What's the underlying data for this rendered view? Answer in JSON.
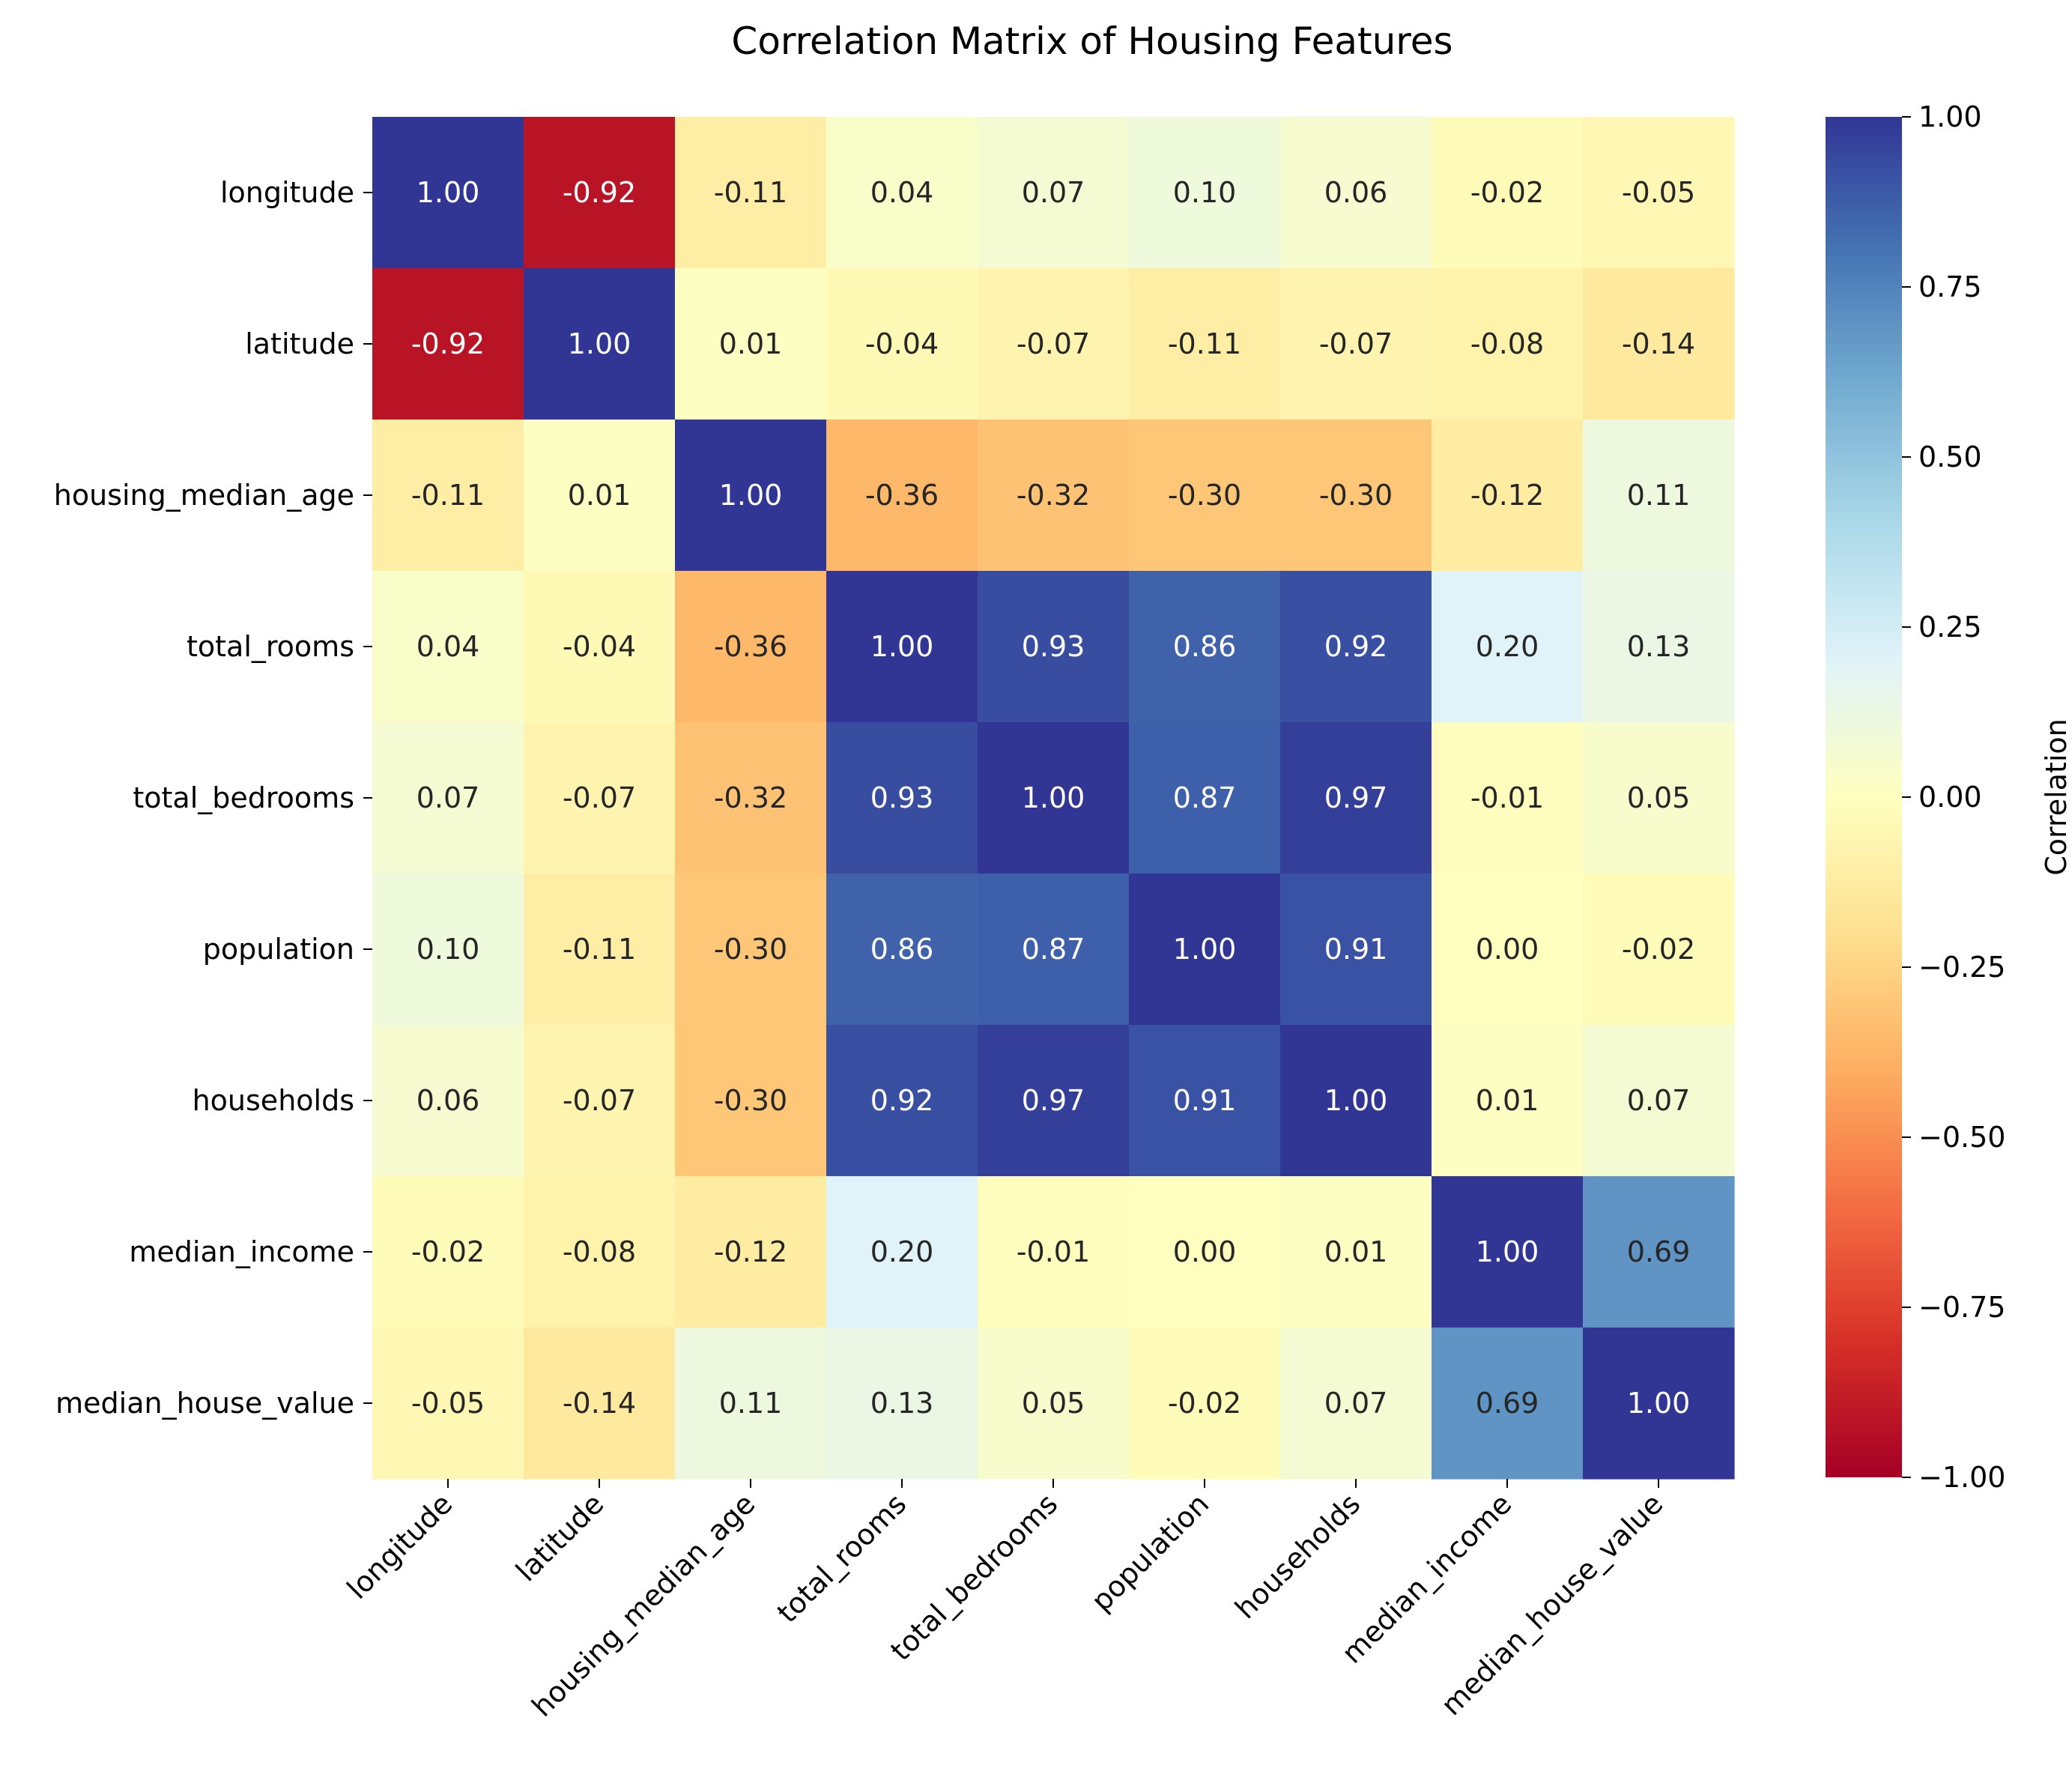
{
  "chart_data": {
    "type": "heatmap",
    "title": "Correlation Matrix of Housing Features",
    "xlabel": "",
    "ylabel": "",
    "labels": [
      "longitude",
      "latitude",
      "housing_median_age",
      "total_rooms",
      "total_bedrooms",
      "population",
      "households",
      "median_income",
      "median_house_value"
    ],
    "values": [
      [
        1.0,
        -0.92,
        -0.11,
        0.04,
        0.07,
        0.1,
        0.06,
        -0.02,
        -0.05
      ],
      [
        -0.92,
        1.0,
        0.01,
        -0.04,
        -0.07,
        -0.11,
        -0.07,
        -0.08,
        -0.14
      ],
      [
        -0.11,
        0.01,
        1.0,
        -0.36,
        -0.32,
        -0.3,
        -0.3,
        -0.12,
        0.11
      ],
      [
        0.04,
        -0.04,
        -0.36,
        1.0,
        0.93,
        0.86,
        0.92,
        0.2,
        0.13
      ],
      [
        0.07,
        -0.07,
        -0.32,
        0.93,
        1.0,
        0.87,
        0.97,
        -0.01,
        0.05
      ],
      [
        0.1,
        -0.11,
        -0.3,
        0.86,
        0.87,
        1.0,
        0.91,
        0.0,
        -0.02
      ],
      [
        0.06,
        -0.07,
        -0.3,
        0.92,
        0.97,
        0.91,
        1.0,
        0.01,
        0.07
      ],
      [
        -0.02,
        -0.08,
        -0.12,
        0.2,
        -0.01,
        0.0,
        0.01,
        1.0,
        0.69
      ],
      [
        -0.05,
        -0.14,
        0.11,
        0.13,
        0.05,
        -0.02,
        0.07,
        0.69,
        1.0
      ]
    ],
    "value_format": "0.00",
    "colormap": "RdYlBu",
    "colorbar": {
      "label": "Correlation",
      "range": [
        -1.0,
        1.0
      ],
      "ticks": [
        1.0,
        0.75,
        0.5,
        0.25,
        0.0,
        -0.25,
        -0.5,
        -0.75,
        -1.0
      ],
      "tick_labels": [
        "1.00",
        "0.75",
        "0.50",
        "0.25",
        "0.00",
        "−0.25",
        "−0.50",
        "−0.75",
        "−1.00"
      ],
      "position": "right"
    },
    "grid": false,
    "legend": "none"
  }
}
